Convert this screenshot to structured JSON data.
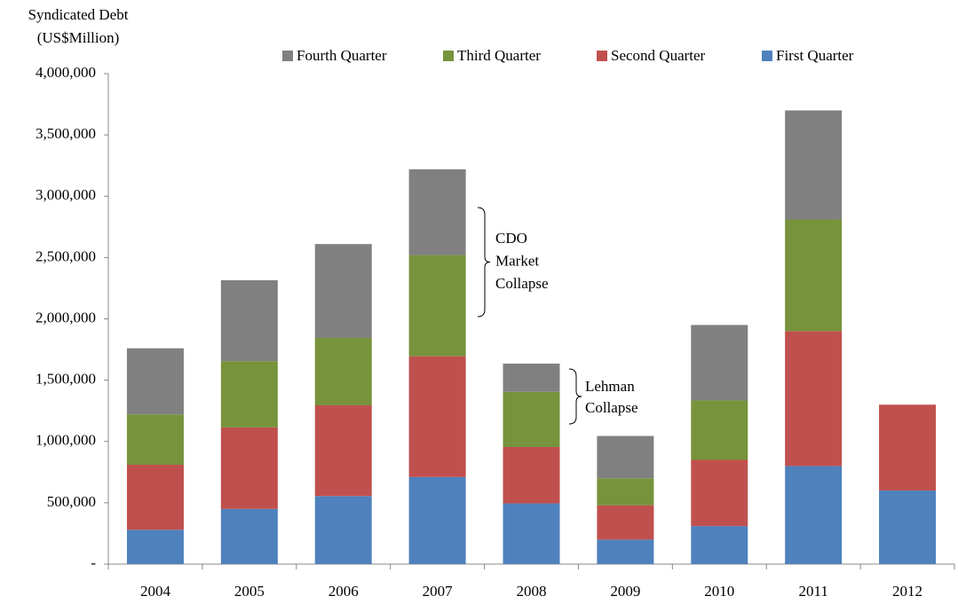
{
  "chart_data": {
    "type": "stacked_bar",
    "ylabel": [
      "Syndicated Debt",
      "(US$Million)"
    ],
    "categories": [
      "2004",
      "2005",
      "2006",
      "2007",
      "2008",
      "2009",
      "2010",
      "2011",
      "2012"
    ],
    "series": [
      {
        "name": "First Quarter",
        "color": "#4f81bd",
        "values": [
          280000,
          450000,
          555000,
          710000,
          495000,
          200000,
          310000,
          800000,
          600000
        ]
      },
      {
        "name": "Second Quarter",
        "color": "#c0504d",
        "values": [
          530000,
          665000,
          740000,
          985000,
          460000,
          280000,
          540000,
          1100000,
          700000
        ]
      },
      {
        "name": "Third Quarter",
        "color": "#77933c",
        "values": [
          410000,
          540000,
          550000,
          825000,
          450000,
          220000,
          485000,
          910000,
          null
        ]
      },
      {
        "name": "Fourth Quarter",
        "color": "#808080",
        "values": [
          540000,
          660000,
          765000,
          700000,
          230000,
          345000,
          615000,
          890000,
          null
        ]
      }
    ],
    "ylim": [
      0,
      4000000
    ],
    "yticks": [
      {
        "value": 0,
        "label": "-"
      },
      {
        "value": 500000,
        "label": "500,000"
      },
      {
        "value": 1000000,
        "label": "1,000,000"
      },
      {
        "value": 1500000,
        "label": "1,500,000"
      },
      {
        "value": 2000000,
        "label": "2,000,000"
      },
      {
        "value": 2500000,
        "label": "2,500,000"
      },
      {
        "value": 3000000,
        "label": "3,000,000"
      },
      {
        "value": 3500000,
        "label": "3,500,000"
      },
      {
        "value": 4000000,
        "label": "4,000,000"
      }
    ],
    "annotations": [
      [
        "CDO",
        "Market",
        "Collapse"
      ],
      [
        "Lehman",
        "Collapse"
      ]
    ]
  }
}
